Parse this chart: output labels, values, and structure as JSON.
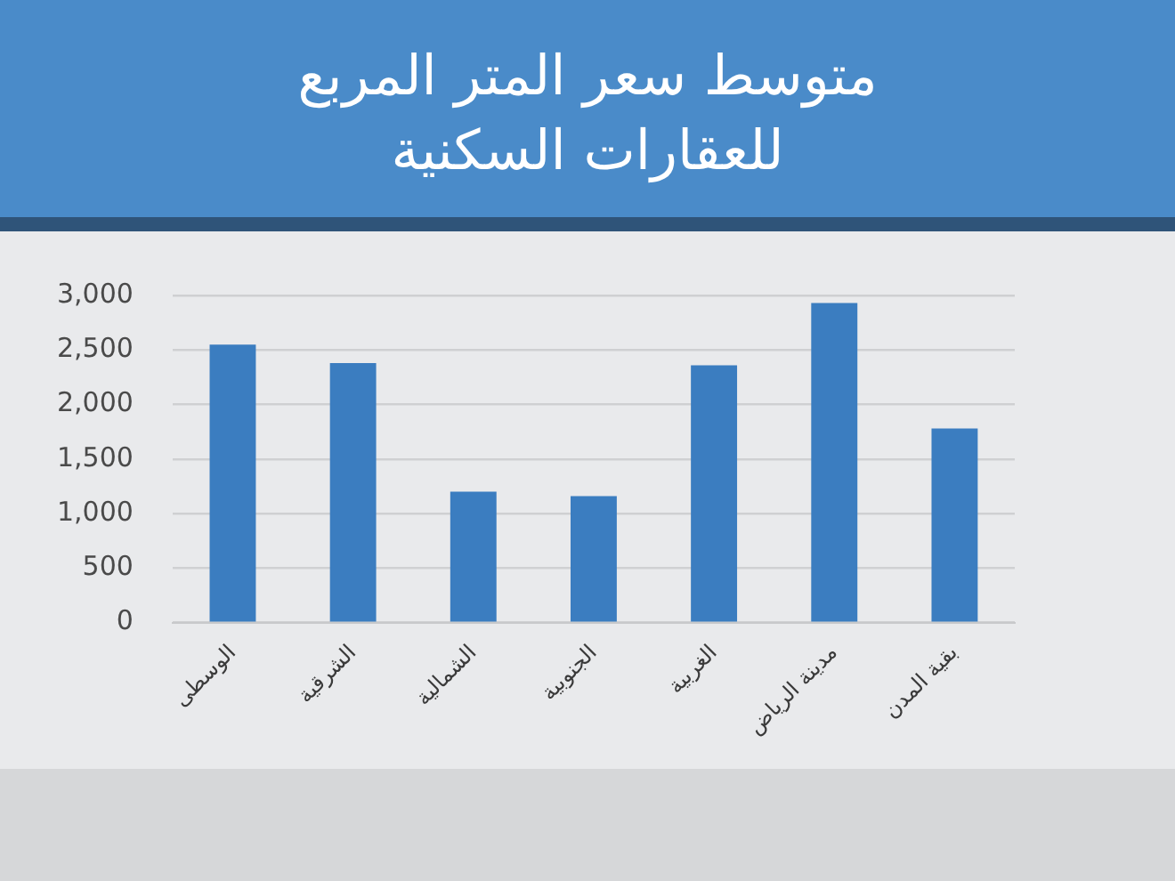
{
  "chart_data": {
    "type": "bar",
    "title": "متوسط سعر المتر المربع للعقارات السكنية",
    "categories": [
      "الوسطى",
      "الشرقية",
      "الشمالية",
      "الجنوبية",
      "الغربية",
      "مدينة الرياض",
      "بقية المدن"
    ],
    "values": [
      2550,
      2380,
      1200,
      1160,
      2360,
      2930,
      1780
    ],
    "color": "#3b7dc0",
    "ylim": [
      0,
      3000
    ],
    "yticks": [
      0,
      500,
      {
        "value": 1000,
        "label": "1,000"
      },
      {
        "value": 1500,
        "label": "1,500"
      },
      {
        "value": 2000,
        "label": "2,000"
      },
      {
        "value": 2500,
        "label": "2,500"
      },
      {
        "value": 3000,
        "label": "3,000"
      }
    ],
    "grid": "y"
  }
}
